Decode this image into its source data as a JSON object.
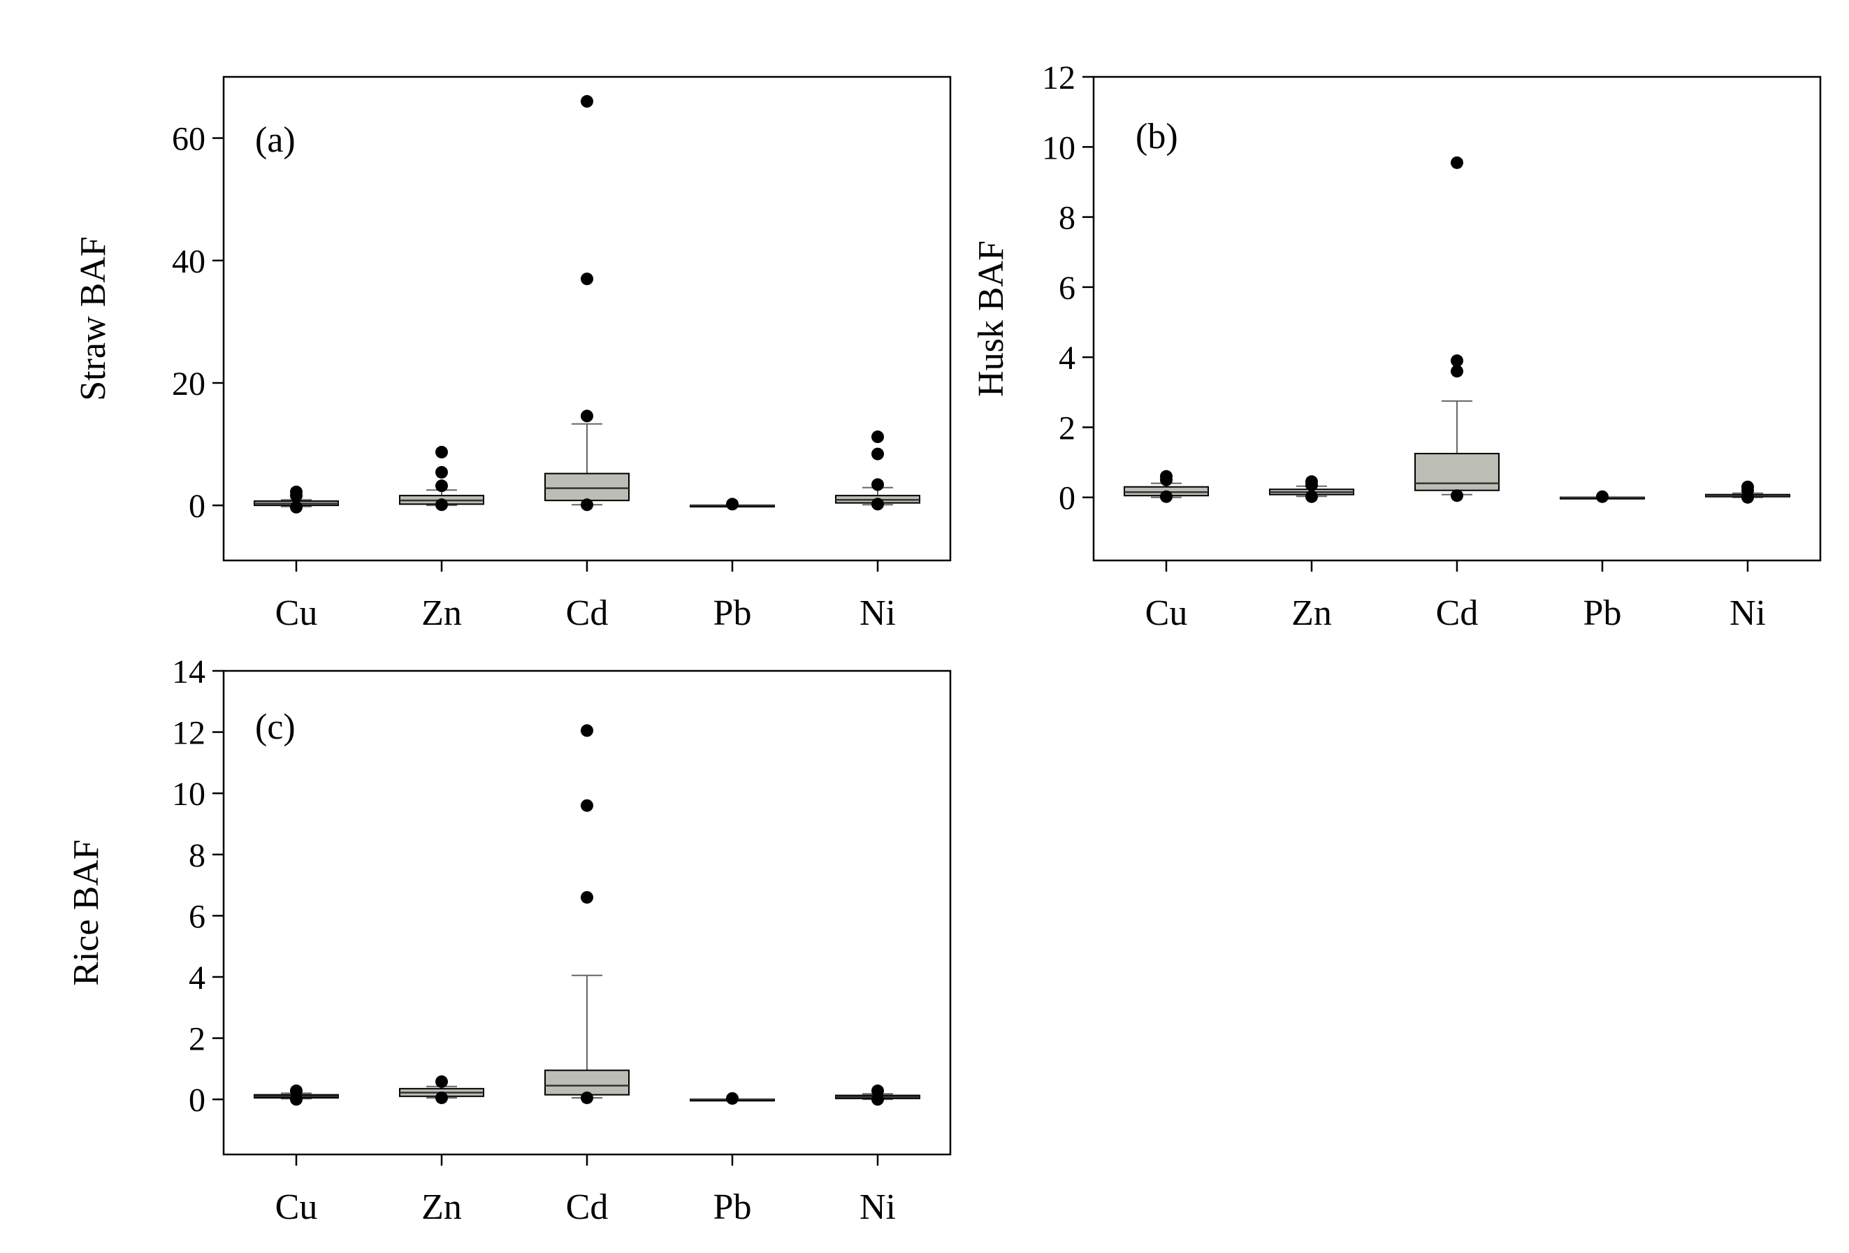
{
  "figure": {
    "background": "#ffffff",
    "box_fill": "#bcbdb5",
    "whisker_color": "#666666",
    "point_color": "#000000"
  },
  "chart_data": [
    {
      "type": "box",
      "panel_label": "(a)",
      "ylabel": "Straw BAF",
      "xlabel": "",
      "categories": [
        "Cu",
        "Zn",
        "Cd",
        "Pb",
        "Ni"
      ],
      "ylim": [
        -9,
        70
      ],
      "yticks": [
        0,
        20,
        40,
        60
      ],
      "ytick_labels": [
        "0",
        "20",
        "40",
        "60"
      ],
      "boxes": [
        {
          "name": "Cu",
          "q1": 0.0,
          "median": 0.3,
          "q3": 0.7,
          "whisker_low": -0.2,
          "whisker_high": 0.9,
          "outliers": [
            2.2,
            1.6,
            -0.3
          ]
        },
        {
          "name": "Zn",
          "q1": 0.2,
          "median": 0.8,
          "q3": 1.6,
          "whisker_low": 0.0,
          "whisker_high": 2.5,
          "outliers": [
            8.7,
            5.4,
            3.2,
            0.1
          ]
        },
        {
          "name": "Cd",
          "q1": 0.8,
          "median": 2.8,
          "q3": 5.2,
          "whisker_low": 0.1,
          "whisker_high": 13.3,
          "outliers": [
            66.0,
            37.0,
            14.6,
            0.1
          ]
        },
        {
          "name": "Pb",
          "q1": 0.0,
          "median": 0.0,
          "q3": 0.0,
          "whisker_low": 0.0,
          "whisker_high": 0.0,
          "outliers": [
            0.2
          ]
        },
        {
          "name": "Ni",
          "q1": 0.4,
          "median": 0.9,
          "q3": 1.6,
          "whisker_low": 0.1,
          "whisker_high": 2.9,
          "outliers": [
            11.2,
            8.4,
            3.4,
            0.2
          ]
        }
      ]
    },
    {
      "type": "box",
      "panel_label": "(b)",
      "ylabel": "Husk BAF",
      "xlabel": "",
      "categories": [
        "Cu",
        "Zn",
        "Cd",
        "Pb",
        "Ni"
      ],
      "ylim": [
        -1.8,
        12
      ],
      "yticks": [
        0,
        2,
        4,
        6,
        8,
        10,
        12
      ],
      "ytick_labels": [
        "0",
        "2",
        "4",
        "6",
        "8",
        "10",
        "12"
      ],
      "boxes": [
        {
          "name": "Cu",
          "q1": 0.05,
          "median": 0.15,
          "q3": 0.3,
          "whisker_low": 0.0,
          "whisker_high": 0.4,
          "outliers": [
            0.6,
            0.5,
            0.02
          ]
        },
        {
          "name": "Zn",
          "q1": 0.08,
          "median": 0.15,
          "q3": 0.23,
          "whisker_low": 0.03,
          "whisker_high": 0.32,
          "outliers": [
            0.45,
            0.35,
            0.02
          ]
        },
        {
          "name": "Cd",
          "q1": 0.2,
          "median": 0.4,
          "q3": 1.25,
          "whisker_low": 0.08,
          "whisker_high": 2.75,
          "outliers": [
            9.55,
            3.9,
            3.6,
            0.05
          ]
        },
        {
          "name": "Pb",
          "q1": 0.0,
          "median": 0.0,
          "q3": 0.0,
          "whisker_low": 0.0,
          "whisker_high": 0.0,
          "outliers": [
            0.02
          ]
        },
        {
          "name": "Ni",
          "q1": 0.02,
          "median": 0.05,
          "q3": 0.08,
          "whisker_low": 0.0,
          "whisker_high": 0.12,
          "outliers": [
            0.3,
            0.2,
            0.0
          ]
        }
      ]
    },
    {
      "type": "box",
      "panel_label": "(c)",
      "ylabel": "Rice BAF",
      "xlabel": "",
      "categories": [
        "Cu",
        "Zn",
        "Cd",
        "Pb",
        "Ni"
      ],
      "ylim": [
        -1.8,
        14
      ],
      "yticks": [
        0,
        2,
        4,
        6,
        8,
        10,
        12,
        14
      ],
      "ytick_labels": [
        "0",
        "2",
        "4",
        "6",
        "8",
        "10",
        "12",
        "14"
      ],
      "boxes": [
        {
          "name": "Cu",
          "q1": 0.05,
          "median": 0.1,
          "q3": 0.15,
          "whisker_low": 0.02,
          "whisker_high": 0.2,
          "outliers": [
            0.28,
            0.0
          ]
        },
        {
          "name": "Zn",
          "q1": 0.1,
          "median": 0.22,
          "q3": 0.35,
          "whisker_low": 0.05,
          "whisker_high": 0.42,
          "outliers": [
            0.58,
            0.05
          ]
        },
        {
          "name": "Cd",
          "q1": 0.15,
          "median": 0.45,
          "q3": 0.95,
          "whisker_low": 0.05,
          "whisker_high": 4.05,
          "outliers": [
            12.05,
            9.6,
            6.6,
            0.05
          ]
        },
        {
          "name": "Pb",
          "q1": 0.0,
          "median": 0.0,
          "q3": 0.0,
          "whisker_low": 0.0,
          "whisker_high": 0.0,
          "outliers": [
            0.03
          ]
        },
        {
          "name": "Ni",
          "q1": 0.03,
          "median": 0.08,
          "q3": 0.13,
          "whisker_low": 0.0,
          "whisker_high": 0.18,
          "outliers": [
            0.28,
            0.0
          ]
        }
      ]
    }
  ]
}
